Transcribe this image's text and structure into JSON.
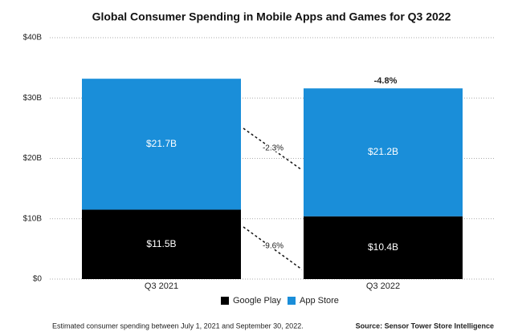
{
  "chart_data": {
    "type": "bar",
    "stacked": true,
    "title": "Global Consumer Spending in Mobile Apps and Games for Q3 2022",
    "categories": [
      "Q3 2021",
      "Q3 2022"
    ],
    "series": [
      {
        "name": "Google Play",
        "color": "#000000",
        "values": [
          11.5,
          10.4
        ],
        "value_labels": [
          "$11.5B",
          "$10.4B"
        ]
      },
      {
        "name": "App Store",
        "color": "#1a8ed9",
        "values": [
          21.7,
          21.2
        ],
        "value_labels": [
          "$21.7B",
          "$21.2B"
        ]
      }
    ],
    "ylim": [
      0,
      40
    ],
    "yticks": [
      {
        "value": 0,
        "label": "$0"
      },
      {
        "value": 10,
        "label": "$10B"
      },
      {
        "value": 20,
        "label": "$20B"
      },
      {
        "value": 30,
        "label": "$30B"
      },
      {
        "value": 40,
        "label": "$40B"
      }
    ],
    "grid": true,
    "annotations": [
      "-4.8%",
      "-2.3%",
      "-9.6%"
    ],
    "footnote": "Estimated consumer spending between July 1, 2021 and September 30, 2022.",
    "source": "Source: Sensor Tower Store Intelligence"
  }
}
